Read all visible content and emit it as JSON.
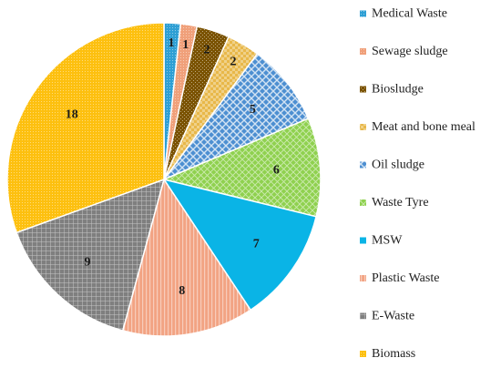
{
  "chart_data": {
    "type": "pie",
    "title": "",
    "legend_position": "right",
    "series": [
      {
        "name": "Medical Waste",
        "value": 1,
        "color": "#2e9fd4",
        "pattern": "fine-dots"
      },
      {
        "name": "Sewage sludge",
        "value": 1,
        "color": "#f0a07a",
        "pattern": "fine-dots"
      },
      {
        "name": "Biosludge",
        "value": 2,
        "color": "#7a5200",
        "pattern": "dots"
      },
      {
        "name": "Meat and bone meal",
        "value": 2,
        "color": "#e8b84a",
        "pattern": "checker"
      },
      {
        "name": "Oil sludge",
        "value": 5,
        "color": "#4d8fd1",
        "pattern": "diamond-grid"
      },
      {
        "name": "Waste Tyre",
        "value": 6,
        "color": "#8fd14f",
        "pattern": "diagonal-weave"
      },
      {
        "name": "MSW",
        "value": 7,
        "color": "#0ab4e6",
        "pattern": "none"
      },
      {
        "name": "Plastic Waste",
        "value": 8,
        "color": "#f2a383",
        "pattern": "vertical-stripes"
      },
      {
        "name": "E-Waste",
        "value": 9,
        "color": "#7f7f7f",
        "pattern": "grid"
      },
      {
        "name": "Biomass",
        "value": 18,
        "color": "#fdc00f",
        "pattern": "fine-dots"
      }
    ]
  }
}
